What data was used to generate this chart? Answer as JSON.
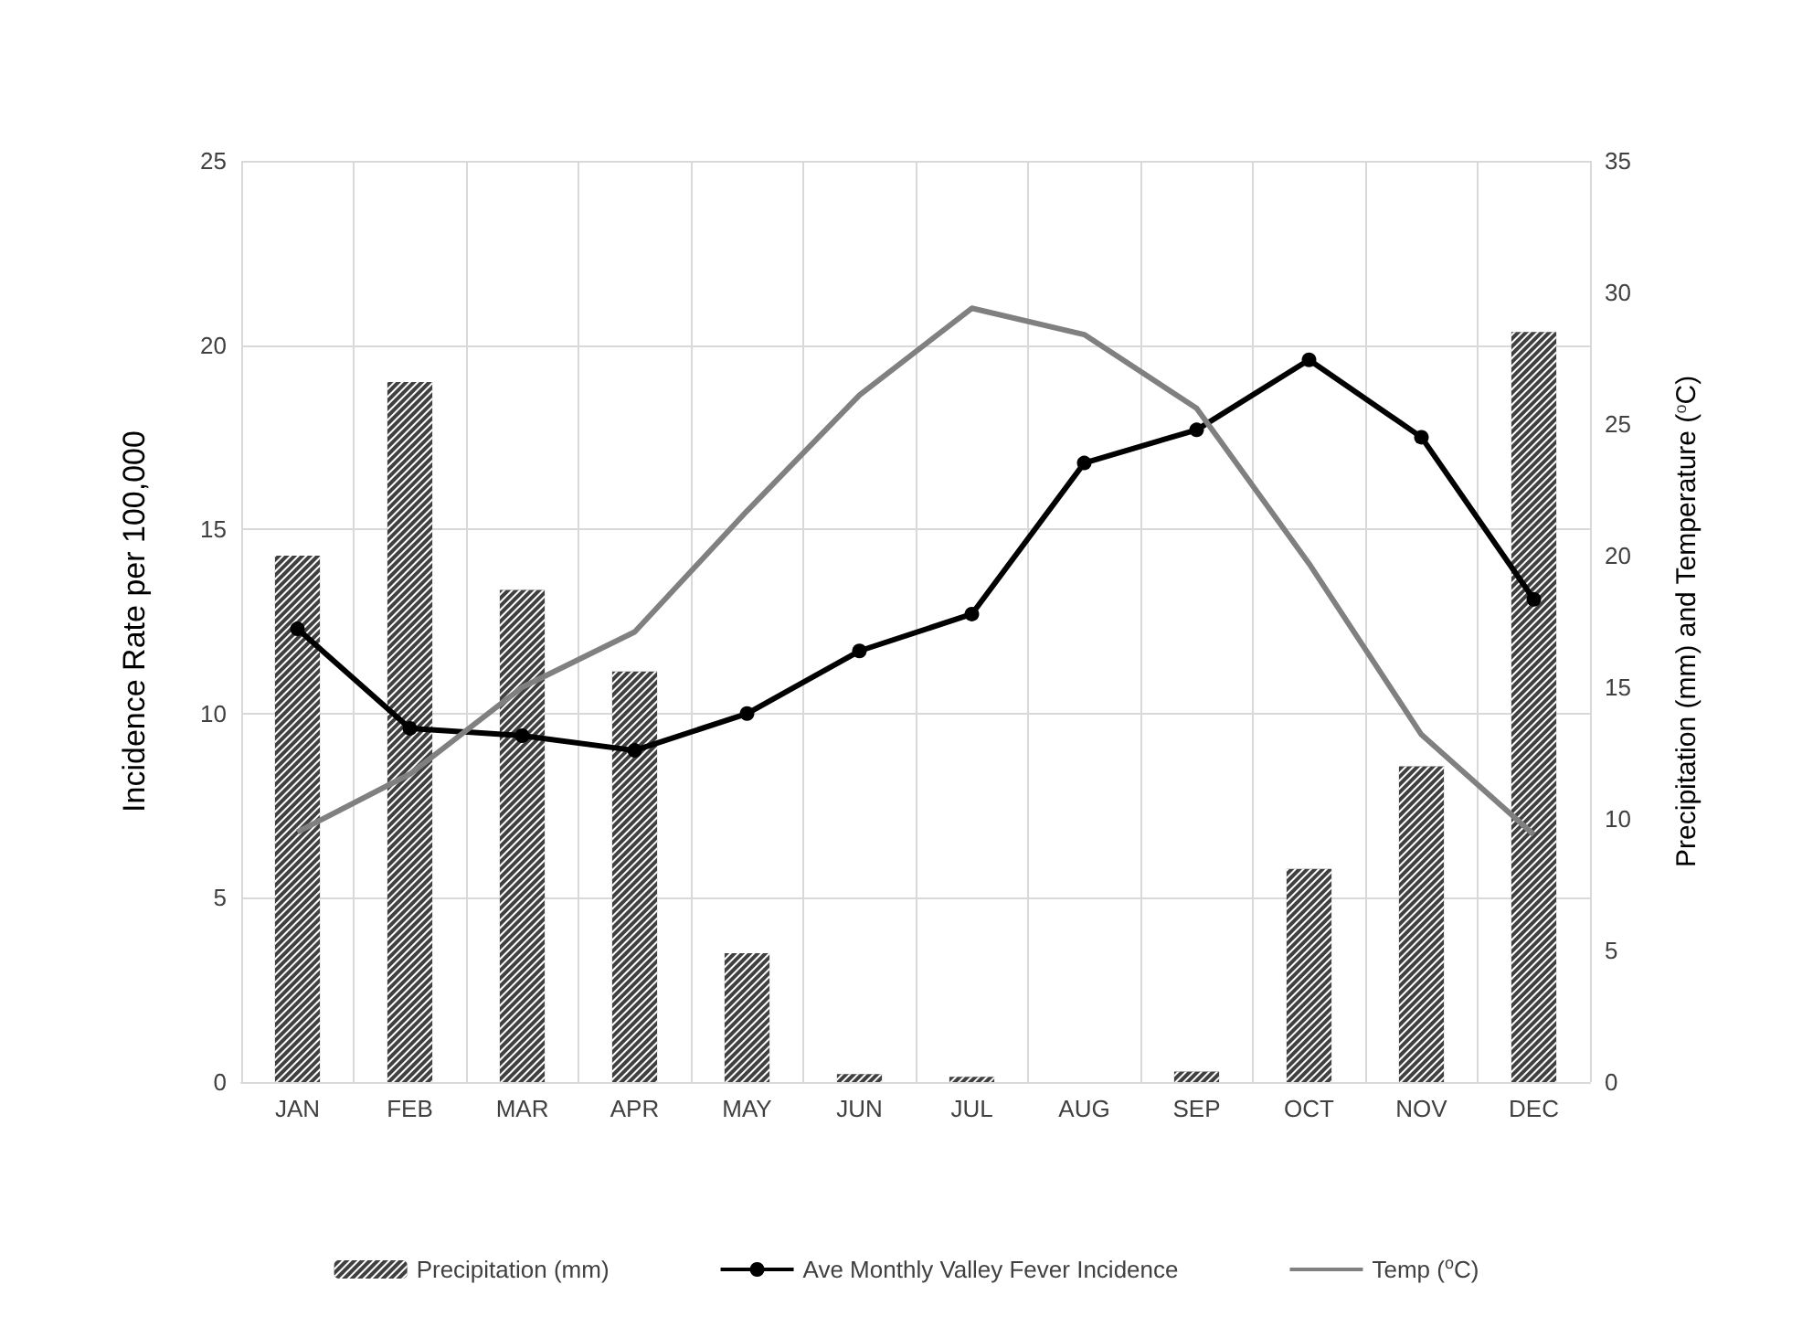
{
  "chart_data": {
    "type": "bar",
    "ylabel": "Incidence Rate per 100,000",
    "y2label": "Precipitation (mm) and Temperature ($^{o}$C)",
    "categories": [
      "JAN",
      "FEB",
      "MAR",
      "APR",
      "MAY",
      "JUN",
      "JUL",
      "AUG",
      "SEP",
      "OCT",
      "NOV",
      "DEC"
    ],
    "series": [
      {
        "name": "Precipitation (mm)",
        "axis": "y2",
        "color": "#404040",
        "values": [
          20.0,
          26.6,
          18.7,
          15.6,
          4.9,
          0.3,
          0.2,
          0,
          0.4,
          8.1,
          12.0,
          28.5
        ]
      },
      {
        "name": "Ave Monthly Valley Fever Incidence",
        "type": "line",
        "marker": "circle",
        "color": "#000000",
        "values": [
          12.3,
          9.6,
          9.4,
          9.0,
          10.0,
          11.7,
          12.7,
          16.8,
          17.7,
          19.6,
          17.5,
          13.1
        ]
      },
      {
        "name": "Temp ($^{o}$C)",
        "type": "line",
        "marker": "none",
        "axis": "y2",
        "color": "#808080",
        "values": [
          9.5,
          11.7,
          15.0,
          17.1,
          21.7,
          26.1,
          29.4,
          28.4,
          25.6,
          19.7,
          13.2,
          9.4
        ]
      }
    ],
    "ylim": [
      0,
      25
    ],
    "yticks": [
      0,
      5,
      10,
      15,
      20,
      25
    ],
    "y2lim": [
      0,
      35
    ],
    "y2ticks": [
      0,
      5,
      10,
      15,
      20,
      25,
      30,
      35
    ],
    "grid": true,
    "legend": "bottom"
  }
}
